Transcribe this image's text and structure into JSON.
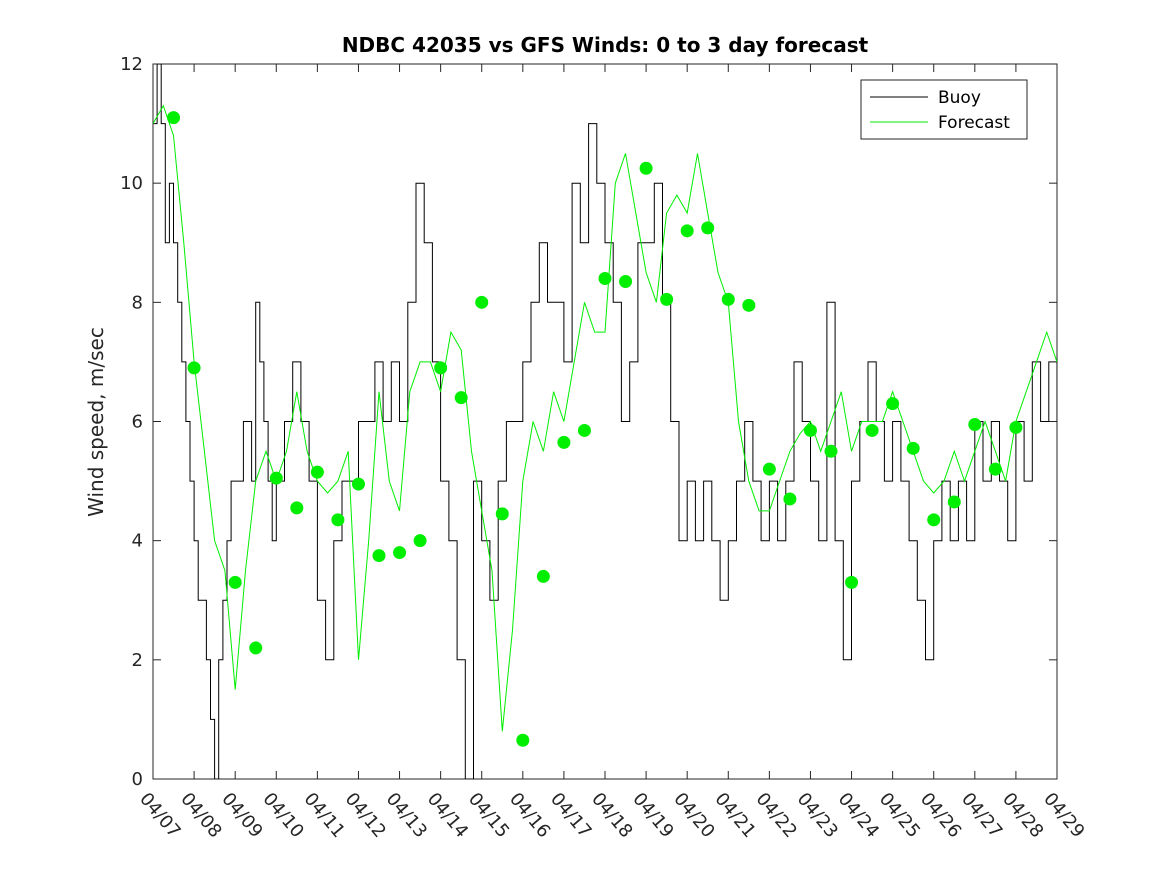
{
  "chart_data": {
    "type": "line",
    "title": "NDBC 42035 vs GFS Winds: 0 to 3 day forecast",
    "xlabel": "",
    "ylabel": "Wind speed, m/sec",
    "xlim": [
      0,
      22
    ],
    "ylim": [
      0,
      12
    ],
    "x_tick_values": [
      0,
      1,
      2,
      3,
      4,
      5,
      6,
      7,
      8,
      9,
      10,
      11,
      12,
      13,
      14,
      15,
      16,
      17,
      18,
      19,
      20,
      21,
      22
    ],
    "x_tick_labels": [
      "04/07",
      "04/08",
      "04/09",
      "04/10",
      "04/11",
      "04/12",
      "04/13",
      "04/14",
      "04/15",
      "04/16",
      "04/17",
      "04/18",
      "04/19",
      "04/20",
      "04/21",
      "04/22",
      "04/23",
      "04/24",
      "04/25",
      "04/26",
      "04/27",
      "04/28",
      "04/29"
    ],
    "y_tick_values": [
      0,
      2,
      4,
      6,
      8,
      10,
      12
    ],
    "y_tick_labels": [
      "0",
      "2",
      "4",
      "6",
      "8",
      "10",
      "12"
    ],
    "grid": false,
    "legend_position": "top-right",
    "legend": [
      {
        "label": "Buoy",
        "color": "#000000"
      },
      {
        "label": "Forecast",
        "color": "#00ee00"
      }
    ],
    "series": [
      {
        "name": "Buoy",
        "color": "#000000",
        "x": [
          0,
          0.1,
          0.2,
          0.3,
          0.4,
          0.5,
          0.6,
          0.7,
          0.8,
          0.9,
          1.0,
          1.1,
          1.2,
          1.3,
          1.4,
          1.5,
          1.6,
          1.7,
          1.8,
          1.9,
          2.0,
          2.1,
          2.2,
          2.3,
          2.4,
          2.5,
          2.6,
          2.7,
          2.8,
          2.9,
          3.0,
          3.2,
          3.4,
          3.6,
          3.8,
          4.0,
          4.2,
          4.4,
          4.6,
          4.8,
          5.0,
          5.2,
          5.4,
          5.6,
          5.8,
          6.0,
          6.2,
          6.4,
          6.6,
          6.8,
          7.0,
          7.2,
          7.4,
          7.6,
          7.8,
          8.0,
          8.2,
          8.4,
          8.6,
          8.8,
          9.0,
          9.2,
          9.4,
          9.6,
          9.8,
          10.0,
          10.2,
          10.4,
          10.6,
          10.8,
          11.0,
          11.2,
          11.4,
          11.6,
          11.8,
          12.0,
          12.2,
          12.4,
          12.6,
          12.8,
          13.0,
          13.2,
          13.4,
          13.6,
          13.8,
          14.0,
          14.2,
          14.4,
          14.6,
          14.8,
          15.0,
          15.2,
          15.4,
          15.6,
          15.8,
          16.0,
          16.2,
          16.4,
          16.6,
          16.8,
          17.0,
          17.2,
          17.4,
          17.6,
          17.8,
          18.0,
          18.2,
          18.4,
          18.6,
          18.8,
          19.0,
          19.2,
          19.4,
          19.6,
          19.8,
          20.0,
          20.2,
          20.4,
          20.6,
          20.8,
          21.0,
          21.2,
          21.4,
          21.6,
          21.8,
          22.0
        ],
        "y": [
          11,
          12,
          11,
          9,
          10,
          9,
          8,
          7,
          6,
          5,
          4,
          3,
          3,
          2,
          1,
          0,
          2,
          3,
          4,
          5,
          5,
          5,
          6,
          6,
          5,
          8,
          7,
          6,
          5,
          4,
          5,
          6,
          7,
          6,
          5,
          3,
          2,
          4,
          5,
          5,
          6,
          6,
          7,
          6,
          7,
          6,
          8,
          10,
          9,
          7,
          5,
          4,
          2,
          0,
          5,
          4,
          3,
          5,
          6,
          6,
          7,
          8,
          9,
          8,
          8,
          7,
          10,
          9,
          11,
          10,
          9,
          8,
          6,
          7,
          9,
          9,
          10,
          8,
          6,
          4,
          5,
          4,
          5,
          4,
          3,
          4,
          5,
          6,
          5,
          4,
          5,
          4,
          5,
          7,
          6,
          5,
          4,
          8,
          4,
          2,
          5,
          6,
          7,
          6,
          5,
          6,
          5,
          4,
          3,
          2,
          4,
          5,
          4,
          5,
          4,
          6,
          5,
          6,
          5,
          4,
          6,
          5,
          7,
          6,
          7,
          6
        ]
      },
      {
        "name": "Forecast",
        "color": "#00ee00",
        "x": [
          0,
          0.25,
          0.5,
          0.75,
          1.0,
          1.25,
          1.5,
          1.75,
          2.0,
          2.25,
          2.5,
          2.75,
          3.0,
          3.25,
          3.5,
          3.75,
          4.0,
          4.25,
          4.5,
          4.75,
          5.0,
          5.25,
          5.5,
          5.75,
          6.0,
          6.25,
          6.5,
          6.75,
          7.0,
          7.25,
          7.5,
          7.75,
          8.0,
          8.25,
          8.5,
          8.75,
          9.0,
          9.25,
          9.5,
          9.75,
          10.0,
          10.25,
          10.5,
          10.75,
          11.0,
          11.25,
          11.5,
          11.75,
          12.0,
          12.25,
          12.5,
          12.75,
          13.0,
          13.25,
          13.5,
          13.75,
          14.0,
          14.25,
          14.5,
          14.75,
          15.0,
          15.25,
          15.5,
          15.75,
          16.0,
          16.25,
          16.5,
          16.75,
          17.0,
          17.25,
          17.5,
          17.75,
          18.0,
          18.25,
          18.5,
          18.75,
          19.0,
          19.25,
          19.5,
          19.75,
          20.0,
          20.25,
          20.5,
          20.75,
          21.0,
          21.25,
          21.5,
          21.75,
          22.0
        ],
        "y": [
          11,
          11.3,
          10.8,
          9.0,
          7.0,
          5.5,
          4.0,
          3.5,
          1.5,
          3.5,
          5.0,
          5.5,
          5.0,
          5.5,
          6.5,
          5.5,
          5.0,
          4.8,
          5.0,
          5.5,
          2.0,
          4.0,
          6.5,
          5.0,
          4.5,
          6.5,
          7.0,
          7.0,
          6.5,
          7.5,
          7.2,
          5.5,
          4.5,
          3.5,
          0.8,
          2.5,
          5.0,
          6.0,
          5.5,
          6.5,
          6.0,
          7.0,
          8.0,
          7.5,
          7.5,
          10.0,
          10.5,
          9.5,
          8.5,
          8.0,
          9.5,
          9.8,
          9.5,
          10.5,
          9.5,
          8.5,
          8.0,
          6.0,
          5.0,
          4.5,
          4.5,
          5.0,
          5.5,
          5.8,
          6.0,
          5.5,
          6.0,
          6.5,
          5.5,
          6.0,
          6.0,
          6.0,
          6.5,
          6.0,
          5.5,
          5.0,
          4.8,
          5.0,
          5.5,
          5.0,
          5.5,
          6.0,
          5.5,
          5.0,
          6.0,
          6.5,
          7.0,
          7.5,
          7.0
        ]
      },
      {
        "name": "",
        "color": "#00ee00",
        "x": [
          0.5,
          1.0,
          2.0,
          2.5,
          3.0,
          3.5,
          4.0,
          4.5,
          5.0,
          5.5,
          6.0,
          6.5,
          7.0,
          7.5,
          8.0,
          8.5,
          9.0,
          9.5,
          10.0,
          10.5,
          11.0,
          11.5,
          12.0,
          12.5,
          13.0,
          13.5,
          14.0,
          14.5,
          15.0,
          15.5,
          16.0,
          16.5,
          17.0,
          17.5,
          18.0,
          18.5,
          19.0,
          19.5,
          20.0,
          20.5,
          21.0
        ],
        "y": [
          11.1,
          6.9,
          3.3,
          2.2,
          5.05,
          4.55,
          5.15,
          4.35,
          4.95,
          3.75,
          3.8,
          4.0,
          6.9,
          6.4,
          8.0,
          4.45,
          0.65,
          3.4,
          5.65,
          5.85,
          8.4,
          8.35,
          10.25,
          8.05,
          9.2,
          9.25,
          8.05,
          7.95,
          5.2,
          4.7,
          5.85,
          5.5,
          3.3,
          5.85,
          6.3,
          5.55,
          4.35,
          4.65,
          5.95,
          5.2,
          5.9
        ]
      }
    ]
  }
}
